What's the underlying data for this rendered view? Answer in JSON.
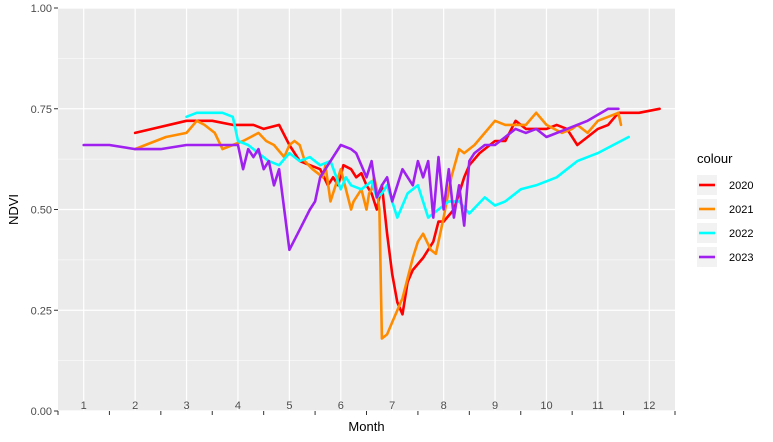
{
  "chart_data": {
    "type": "line",
    "title": "",
    "xlabel": "Month",
    "ylabel": "NDVI",
    "ylim": [
      0,
      1
    ],
    "xlim": [
      0.5,
      12.5
    ],
    "y_ticks": [
      "0.00",
      "0.25",
      "0.50",
      "0.75",
      "1.00"
    ],
    "y_tick_values": [
      0,
      0.25,
      0.5,
      0.75,
      1
    ],
    "x_ticks": [
      "1",
      "2",
      "3",
      "4",
      "5",
      "6",
      "7",
      "8",
      "9",
      "10",
      "11",
      "12"
    ],
    "grid": true,
    "legend_title": "colour",
    "legend_position": "right",
    "series": [
      {
        "name": "2020",
        "color": "#ff0000",
        "x": [
          2.0,
          3.0,
          3.5,
          3.9,
          4.3,
          4.5,
          4.8,
          5.0,
          5.2,
          5.4,
          5.6,
          5.75,
          5.85,
          5.95,
          6.05,
          6.2,
          6.3,
          6.4,
          6.5,
          6.6,
          6.7,
          6.8,
          6.9,
          7.0,
          7.1,
          7.2,
          7.3,
          7.4,
          7.6,
          7.8,
          7.9,
          8.0,
          8.2,
          8.3,
          8.4,
          8.5,
          8.7,
          9.0,
          9.2,
          9.4,
          9.6,
          10.0,
          10.2,
          10.4,
          10.6,
          10.8,
          11.0,
          11.2,
          11.4,
          11.8,
          12.2
        ],
        "y": [
          0.69,
          0.72,
          0.72,
          0.71,
          0.71,
          0.7,
          0.71,
          0.66,
          0.62,
          0.61,
          0.6,
          0.56,
          0.58,
          0.56,
          0.61,
          0.6,
          0.58,
          0.59,
          0.56,
          0.54,
          0.5,
          0.56,
          0.44,
          0.34,
          0.27,
          0.24,
          0.32,
          0.35,
          0.38,
          0.42,
          0.47,
          0.47,
          0.5,
          0.54,
          0.58,
          0.61,
          0.64,
          0.67,
          0.67,
          0.72,
          0.7,
          0.7,
          0.71,
          0.7,
          0.66,
          0.68,
          0.7,
          0.71,
          0.74,
          0.74,
          0.75
        ]
      },
      {
        "name": "2021",
        "color": "#ff8c00",
        "x": [
          2.0,
          2.2,
          2.6,
          3.0,
          3.2,
          3.35,
          3.55,
          3.7,
          3.9,
          4.1,
          4.25,
          4.4,
          4.55,
          4.7,
          4.9,
          5.0,
          5.1,
          5.2,
          5.3,
          5.45,
          5.55,
          5.65,
          5.7,
          5.8,
          6.0,
          6.2,
          6.25,
          6.4,
          6.5,
          6.55,
          6.6,
          6.65,
          6.7,
          6.75,
          6.8,
          6.9,
          7.0,
          7.2,
          7.4,
          7.5,
          7.6,
          7.75,
          7.85,
          8.0,
          8.15,
          8.3,
          8.4,
          8.6,
          8.8,
          9.0,
          9.2,
          9.4,
          9.6,
          9.8,
          10.0,
          10.3,
          10.5,
          10.6,
          10.8,
          11.0,
          11.2,
          11.4,
          11.45
        ],
        "y": [
          0.65,
          0.66,
          0.68,
          0.69,
          0.72,
          0.71,
          0.69,
          0.65,
          0.66,
          0.67,
          0.68,
          0.69,
          0.67,
          0.66,
          0.63,
          0.66,
          0.67,
          0.66,
          0.62,
          0.6,
          0.59,
          0.58,
          0.61,
          0.52,
          0.6,
          0.5,
          0.52,
          0.55,
          0.5,
          0.54,
          0.55,
          0.58,
          0.55,
          0.5,
          0.18,
          0.19,
          0.22,
          0.28,
          0.38,
          0.42,
          0.44,
          0.4,
          0.39,
          0.48,
          0.58,
          0.65,
          0.64,
          0.66,
          0.69,
          0.72,
          0.71,
          0.71,
          0.71,
          0.74,
          0.71,
          0.69,
          0.7,
          0.71,
          0.69,
          0.72,
          0.73,
          0.74,
          0.71
        ]
      },
      {
        "name": "2022",
        "color": "#00ffff",
        "x": [
          3.0,
          3.2,
          3.5,
          3.7,
          3.9,
          4.0,
          4.2,
          4.4,
          4.6,
          4.8,
          5.0,
          5.2,
          5.4,
          5.6,
          5.8,
          6.0,
          6.1,
          6.2,
          6.4,
          6.6,
          6.7,
          6.8,
          6.9,
          7.1,
          7.3,
          7.5,
          7.7,
          7.9,
          8.1,
          8.3,
          8.5,
          8.8,
          9.0,
          9.2,
          9.5,
          9.8,
          10.0,
          10.2,
          10.4,
          10.6,
          10.8,
          11.0,
          11.3,
          11.6
        ],
        "y": [
          0.73,
          0.74,
          0.74,
          0.74,
          0.73,
          0.67,
          0.66,
          0.64,
          0.62,
          0.61,
          0.64,
          0.62,
          0.63,
          0.61,
          0.62,
          0.55,
          0.58,
          0.56,
          0.55,
          0.57,
          0.53,
          0.54,
          0.56,
          0.48,
          0.54,
          0.56,
          0.48,
          0.5,
          0.52,
          0.52,
          0.49,
          0.53,
          0.51,
          0.52,
          0.55,
          0.56,
          0.57,
          0.58,
          0.6,
          0.62,
          0.63,
          0.64,
          0.66,
          0.68
        ]
      },
      {
        "name": "2023",
        "color": "#a020f0",
        "x": [
          1.0,
          1.5,
          2.0,
          2.5,
          3.0,
          3.5,
          4.0,
          4.1,
          4.2,
          4.3,
          4.4,
          4.5,
          4.6,
          4.7,
          4.8,
          5.0,
          5.2,
          5.4,
          5.5,
          5.6,
          5.8,
          6.0,
          6.2,
          6.3,
          6.5,
          6.6,
          6.7,
          6.8,
          6.9,
          7.0,
          7.2,
          7.4,
          7.5,
          7.6,
          7.7,
          7.8,
          7.9,
          8.0,
          8.1,
          8.2,
          8.3,
          8.4,
          8.5,
          8.6,
          8.8,
          9.0,
          9.2,
          9.4,
          9.6,
          9.8,
          10.0,
          10.4,
          10.8,
          11.2,
          11.4
        ],
        "y": [
          0.66,
          0.66,
          0.65,
          0.65,
          0.66,
          0.66,
          0.66,
          0.6,
          0.65,
          0.63,
          0.65,
          0.6,
          0.62,
          0.56,
          0.6,
          0.4,
          0.45,
          0.5,
          0.52,
          0.58,
          0.62,
          0.66,
          0.65,
          0.64,
          0.58,
          0.62,
          0.53,
          0.56,
          0.58,
          0.52,
          0.6,
          0.56,
          0.62,
          0.58,
          0.62,
          0.48,
          0.63,
          0.5,
          0.6,
          0.48,
          0.56,
          0.46,
          0.62,
          0.64,
          0.66,
          0.66,
          0.68,
          0.7,
          0.69,
          0.7,
          0.68,
          0.7,
          0.72,
          0.75,
          0.75
        ]
      }
    ]
  }
}
